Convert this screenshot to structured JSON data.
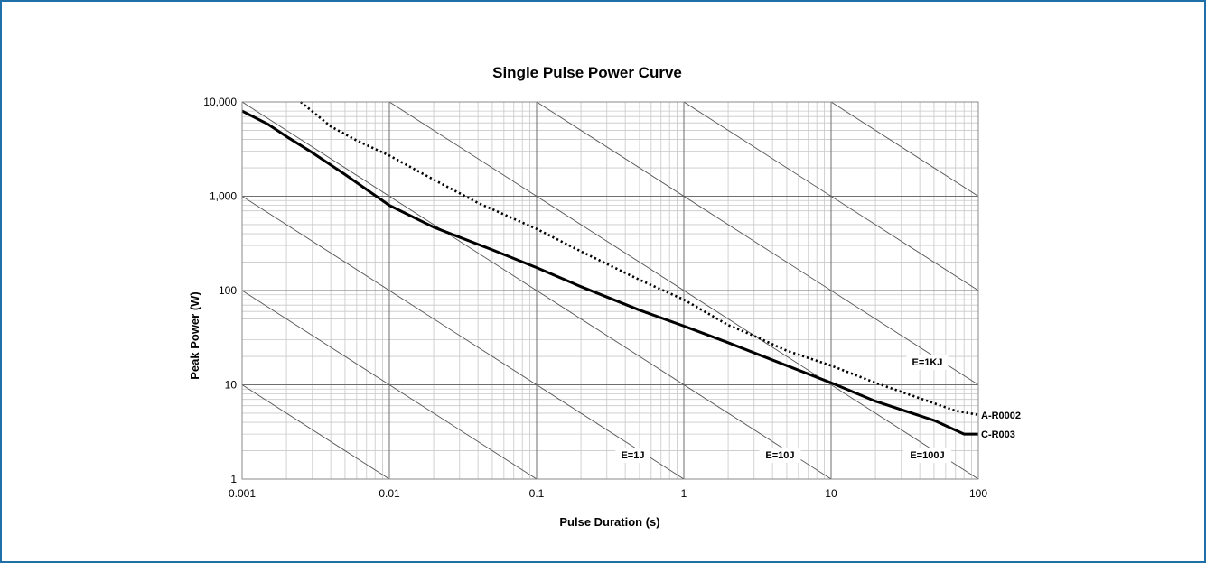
{
  "chart_data": {
    "type": "line",
    "title": "Single Pulse Power Curve",
    "xlabel": "Pulse Duration (s)",
    "ylabel": "Peak Power (W)",
    "x_scale": "log",
    "y_scale": "log",
    "xlim": [
      0.001,
      100
    ],
    "ylim": [
      1,
      10000
    ],
    "x_ticks": [
      {
        "value": 0.001,
        "label": "0.001"
      },
      {
        "value": 0.01,
        "label": "0.01"
      },
      {
        "value": 0.1,
        "label": "0.1"
      },
      {
        "value": 1,
        "label": "1"
      },
      {
        "value": 10,
        "label": "10"
      },
      {
        "value": 100,
        "label": "100"
      }
    ],
    "y_ticks": [
      {
        "value": 1,
        "label": "1"
      },
      {
        "value": 10,
        "label": "10"
      },
      {
        "value": 100,
        "label": "100"
      },
      {
        "value": 1000,
        "label": "1,000"
      },
      {
        "value": 10000,
        "label": "10,000"
      }
    ],
    "grid": true,
    "series": [
      {
        "name": "A-R0002",
        "style": "dotted",
        "color": "#000000",
        "x": [
          0.0025,
          0.004,
          0.006,
          0.01,
          0.02,
          0.04,
          0.1,
          0.2,
          0.5,
          1,
          2,
          3,
          5,
          10,
          20,
          40,
          70,
          100
        ],
        "y": [
          10000,
          5500,
          3900,
          2700,
          1500,
          850,
          450,
          260,
          130,
          80,
          43,
          33,
          23,
          16,
          10.5,
          7.2,
          5.3,
          4.8
        ]
      },
      {
        "name": "C-R003",
        "style": "solid",
        "color": "#000000",
        "x": [
          0.001,
          0.0015,
          0.002,
          0.003,
          0.005,
          0.01,
          0.02,
          0.05,
          0.1,
          0.2,
          0.5,
          1,
          2,
          5,
          10,
          20,
          50,
          80,
          100
        ],
        "y": [
          8000,
          5800,
          4300,
          2900,
          1700,
          800,
          470,
          270,
          175,
          110,
          62,
          42,
          28,
          16,
          10.5,
          6.7,
          4.2,
          3,
          3
        ]
      }
    ],
    "energy_lines": {
      "color": "#555555",
      "values": [
        0.001,
        0.01,
        0.1,
        1,
        10,
        100,
        1000,
        10000,
        100000
      ],
      "labels": [
        {
          "energy": 1,
          "text": "E=1J"
        },
        {
          "energy": 10,
          "text": "E=10J"
        },
        {
          "energy": 100,
          "text": "E=100J"
        },
        {
          "energy": 1000,
          "text": "E=1KJ"
        }
      ]
    }
  }
}
